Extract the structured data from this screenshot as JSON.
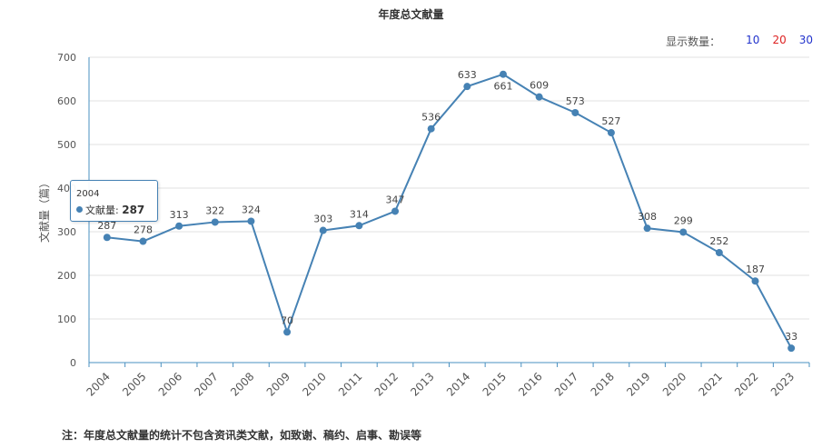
{
  "chart_data": {
    "type": "line",
    "title": "年度总文献量",
    "xlabel": "",
    "ylabel": "文献量（篇）",
    "categories": [
      "2004",
      "2005",
      "2006",
      "2007",
      "2008",
      "2009",
      "2010",
      "2011",
      "2012",
      "2013",
      "2014",
      "2015",
      "2016",
      "2017",
      "2018",
      "2019",
      "2020",
      "2021",
      "2022",
      "2023"
    ],
    "series": [
      {
        "name": "文献量",
        "values": [
          287,
          278,
          313,
          322,
          324,
          70,
          303,
          314,
          347,
          536,
          633,
          661,
          609,
          573,
          527,
          308,
          299,
          252,
          187,
          33
        ]
      }
    ],
    "ylim": [
      0,
      700
    ],
    "yticks": [
      0,
      100,
      200,
      300,
      400,
      500,
      600,
      700
    ],
    "grid": true,
    "color": "#4682b4"
  },
  "controls": {
    "count_label": "显示数量：",
    "options": [
      "10",
      "20",
      "30"
    ],
    "selected": "20"
  },
  "tooltip": {
    "year": "2004",
    "series_label": "文献量:",
    "value": "287"
  },
  "note": "注：年度总文献量的统计不包含资讯类文献，如致谢、稿约、启事、勘误等"
}
